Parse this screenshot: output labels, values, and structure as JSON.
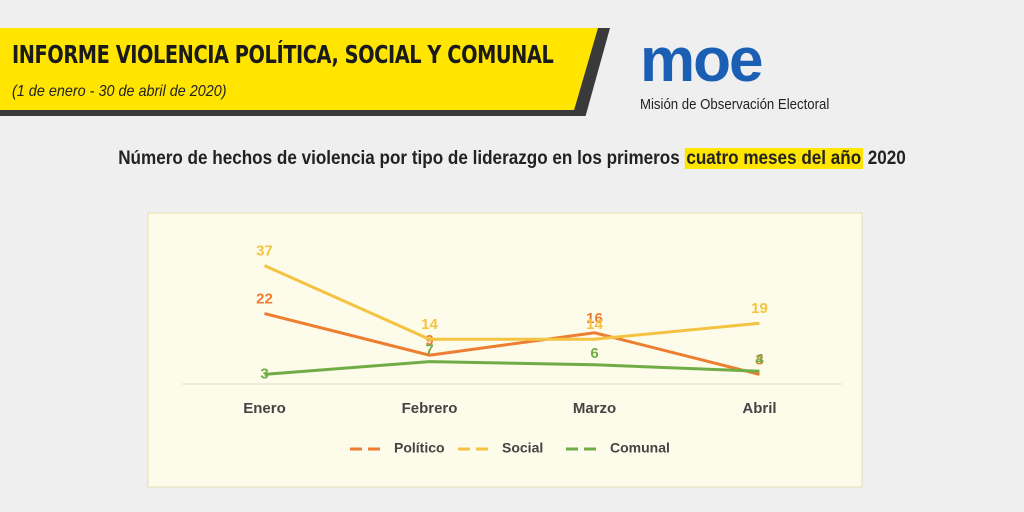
{
  "header": {
    "title": "INFORME VIOLENCIA POLÍTICA, SOCIAL Y COMUNAL",
    "subtitle": "(1 de enero - 30 de abril de 2020)"
  },
  "logo": {
    "name": "moe",
    "caption": "Misión de Observación Electoral"
  },
  "chart_data": {
    "type": "line",
    "title": [
      "Número de hechos de violencia por tipo de liderazgo en los primeros",
      "cuatro meses del año",
      "2020"
    ],
    "categories": [
      "Enero",
      "Febrero",
      "Marzo",
      "Abril"
    ],
    "series": [
      {
        "name": "Político",
        "color": "#ed7d31",
        "values": [
          22,
          9,
          16,
          3
        ]
      },
      {
        "name": "Social",
        "color": "#f5c342",
        "values": [
          37,
          14,
          14,
          19
        ]
      },
      {
        "name": "Comunal",
        "color": "#70ad47",
        "values": [
          3,
          7,
          6,
          4
        ]
      }
    ],
    "ylim": [
      0,
      45
    ]
  }
}
